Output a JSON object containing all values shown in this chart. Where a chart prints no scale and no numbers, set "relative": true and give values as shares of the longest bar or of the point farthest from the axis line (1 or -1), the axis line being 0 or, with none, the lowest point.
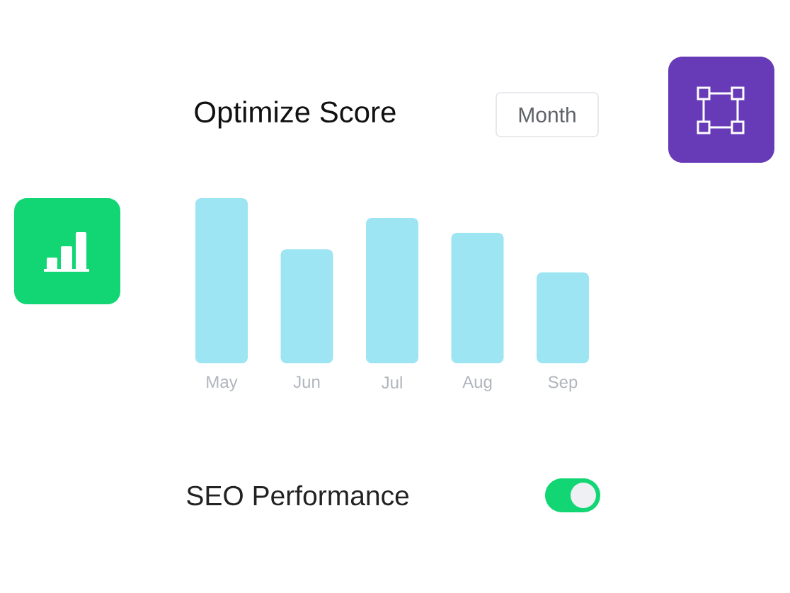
{
  "chart_data": {
    "type": "bar",
    "title": "Optimize Score",
    "categories": [
      "May",
      "Jun",
      "Jul",
      "Aug",
      "Sep"
    ],
    "values": [
      1,
      0.69,
      0.88,
      0.79,
      0.55
    ],
    "relative": true,
    "color": "#9ee5f3",
    "annotations": [
      "Month",
      "SEO Performance"
    ]
  }
}
